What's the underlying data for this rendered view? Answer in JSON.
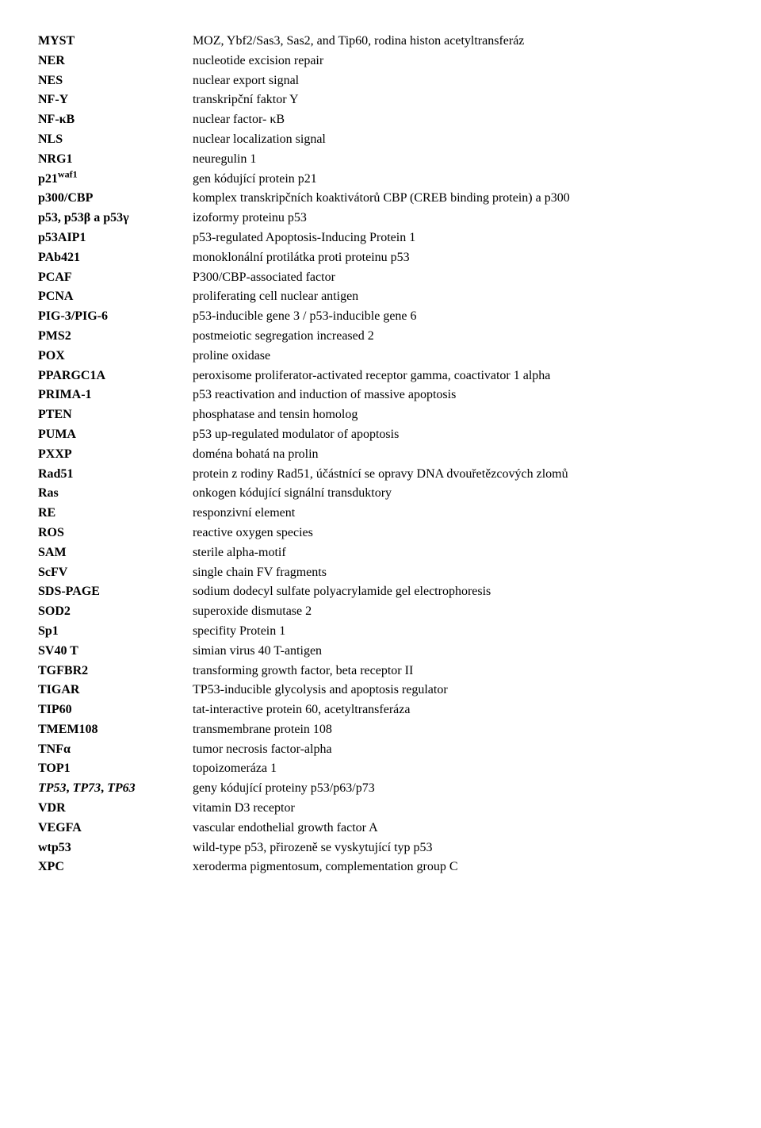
{
  "entries": [
    {
      "abbr": "MYST",
      "def": "MOZ, Ybf2/Sas3, Sas2, and Tip60, rodina histon acetyltransferáz",
      "style": "b"
    },
    {
      "abbr": "NER",
      "def": "nucleotide excision repair",
      "style": "b"
    },
    {
      "abbr": "NES",
      "def": "nuclear export signal",
      "style": "b"
    },
    {
      "abbr": "NF-Y",
      "def": "transkripční faktor Y",
      "style": "b"
    },
    {
      "abbr": "NF-κB",
      "def": "nuclear factor- κB",
      "style": "b"
    },
    {
      "abbr": "NLS",
      "def": "nuclear localization signal",
      "style": "b"
    },
    {
      "abbr": "NRG1",
      "def": "neuregulin 1",
      "style": "b"
    },
    {
      "abbr": "p21",
      "sup": "waf1",
      "def": "gen kódující protein p21",
      "style": "b"
    },
    {
      "abbr": "p300/CBP",
      "def": "komplex transkripčních koaktivátorů CBP (CREB binding protein) a p300",
      "style": "b"
    },
    {
      "abbr": "p53, p53β a p53γ",
      "def": "izoformy proteinu p53",
      "style": "b"
    },
    {
      "abbr": "p53AIP1",
      "def": "p53-regulated Apoptosis-Inducing Protein 1",
      "style": "b"
    },
    {
      "abbr": "PAb421",
      "def": "monoklonální protilátka proti proteinu p53",
      "style": "b"
    },
    {
      "abbr": "PCAF",
      "def": "P300/CBP-associated factor",
      "style": "b"
    },
    {
      "abbr": "PCNA",
      "def": "proliferating cell nuclear antigen",
      "style": "b"
    },
    {
      "abbr": "PIG-3/PIG-6",
      "def": "p53-inducible gene 3 / p53-inducible gene 6",
      "style": "b"
    },
    {
      "abbr": "PMS2",
      "def": "postmeiotic segregation increased 2",
      "style": "b"
    },
    {
      "abbr": "POX",
      "def": "proline oxidase",
      "style": "b"
    },
    {
      "abbr": "PPARGC1A",
      "def": "peroxisome proliferator-activated receptor gamma, coactivator 1 alpha",
      "style": "b"
    },
    {
      "abbr": "PRIMA-1",
      "def": "p53 reactivation and induction of massive apoptosis",
      "style": "b"
    },
    {
      "abbr": "PTEN",
      "def": "phosphatase and tensin homolog",
      "style": "b"
    },
    {
      "abbr": "PUMA",
      "def": "p53 up-regulated modulator of apoptosis",
      "style": "b"
    },
    {
      "abbr": "PXXP",
      "def": "doména bohatá na prolin",
      "style": "b"
    },
    {
      "abbr": "Rad51",
      "def": "protein z rodiny Rad51, účástnící se opravy DNA dvouřetězcových zlomů",
      "style": "b"
    },
    {
      "abbr": "Ras",
      "def": "onkogen kódující signální transduktory",
      "style": "b"
    },
    {
      "abbr": "RE",
      "def": "responzivní element",
      "style": "b"
    },
    {
      "abbr": "ROS",
      "def": "reactive oxygen species",
      "style": "b"
    },
    {
      "abbr": "SAM",
      "def": "sterile alpha-motif",
      "style": "b"
    },
    {
      "abbr": "ScFV",
      "def": "single chain FV fragments",
      "style": "b"
    },
    {
      "abbr": "SDS-PAGE",
      "def": "sodium dodecyl sulfate polyacrylamide gel electrophoresis",
      "style": "b"
    },
    {
      "abbr": "SOD2",
      "def": "superoxide dismutase 2",
      "style": "b"
    },
    {
      "abbr": "Sp1",
      "def": "specifity Protein 1",
      "style": "b"
    },
    {
      "abbr": "SV40 T",
      "def": "simian virus 40 T-antigen",
      "style": "b"
    },
    {
      "abbr": "TGFBR2",
      "def": "transforming growth factor, beta receptor II",
      "style": "b"
    },
    {
      "abbr": "TIGAR",
      "def": "TP53-inducible glycolysis and apoptosis regulator",
      "style": "b"
    },
    {
      "abbr": "TIP60",
      "def": "tat-interactive protein 60, acetyltransferáza",
      "style": "b"
    },
    {
      "abbr": "TMEM108",
      "def": "transmembrane protein 108",
      "style": "b"
    },
    {
      "abbr": "TNFα",
      "def": "tumor necrosis factor-alpha",
      "style": "b"
    },
    {
      "abbr": "TOP1",
      "def": "topoizomeráza 1",
      "style": "b"
    },
    {
      "abbr_parts": [
        {
          "text": "TP53",
          "style": "bi"
        },
        {
          "text": ", ",
          "style": "b"
        },
        {
          "text": "TP73",
          "style": "bi"
        },
        {
          "text": ", ",
          "style": "b"
        },
        {
          "text": "TP63",
          "style": "bi"
        }
      ],
      "def": "geny kódující proteiny p53/p63/p73"
    },
    {
      "abbr": "VDR",
      "def": "vitamin D3 receptor",
      "style": "b"
    },
    {
      "abbr": "VEGFA",
      "def": "vascular endothelial growth factor A",
      "style": "b"
    },
    {
      "abbr": "wtp53",
      "def": "wild-type p53, přirozeně se vyskytující typ p53",
      "style": "b"
    },
    {
      "abbr": "XPC",
      "def": "xeroderma pigmentosum, complementation group C",
      "style": "b"
    }
  ]
}
